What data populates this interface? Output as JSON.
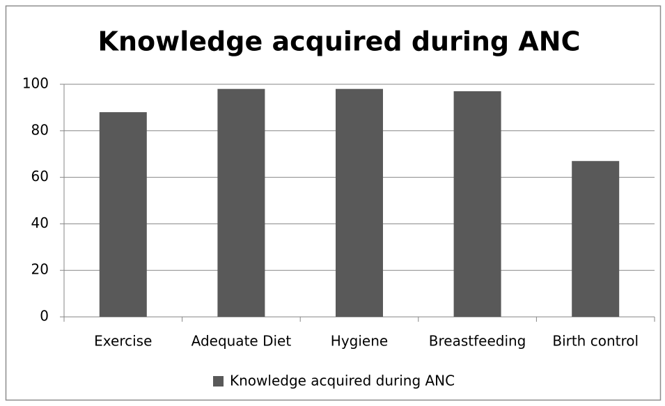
{
  "chart_data": {
    "type": "bar",
    "title": "Knowledge acquired during ANC",
    "categories": [
      "Exercise",
      "Adequate Diet",
      "Hygiene",
      "Breastfeeding",
      "Birth control"
    ],
    "series": [
      {
        "name": "Knowledge acquired during ANC",
        "color": "#595959",
        "values": [
          88,
          98,
          98,
          97,
          67
        ]
      }
    ],
    "ylim": [
      0,
      100
    ],
    "yticks": [
      0,
      20,
      40,
      60,
      80,
      100
    ],
    "grid": true,
    "legend": "bottom"
  }
}
